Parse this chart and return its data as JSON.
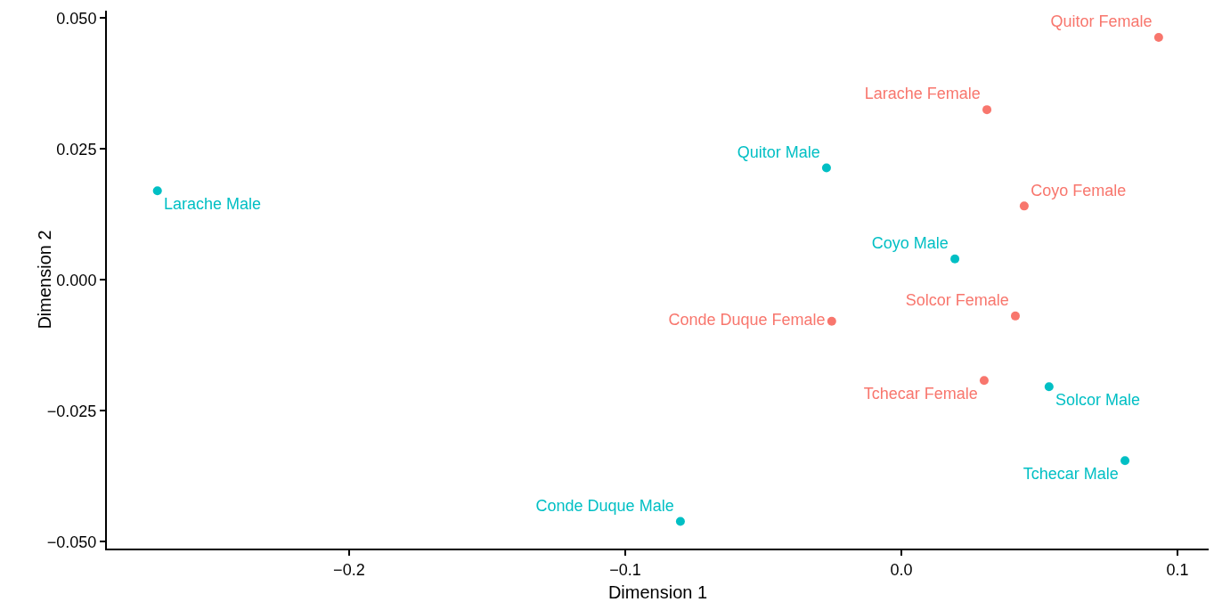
{
  "chart_data": {
    "type": "scatter",
    "xlabel": "Dimension 1",
    "ylabel": "Dimension 2",
    "grid": false,
    "marker": "circle",
    "xlim": [
      -0.2877,
      0.1113
    ],
    "ylim": [
      -0.0513,
      0.0514
    ],
    "xticks": [
      {
        "value": -0.2,
        "label": "−0.2"
      },
      {
        "value": -0.1,
        "label": "−0.1"
      },
      {
        "value": 0,
        "label": "0.0"
      },
      {
        "value": 0.1,
        "label": "0.1"
      }
    ],
    "yticks": [
      {
        "value": -0.05,
        "label": "−0.050"
      },
      {
        "value": -0.025,
        "label": "−0.025"
      },
      {
        "value": 0,
        "label": "0.000"
      },
      {
        "value": 0.025,
        "label": "0.025"
      },
      {
        "value": 0.05,
        "label": "0.050"
      }
    ],
    "series": [
      {
        "color": "#00bfc4",
        "x": [
          -0.2694,
          -0.0271,
          0.0194,
          -0.08,
          0.0535,
          0.081
        ],
        "values": [
          0.017,
          0.0214,
          0.004,
          -0.0461,
          -0.0204,
          -0.0345
        ],
        "value_labels": [
          "Larache Male",
          "Quitor Male",
          "Coyo Male",
          "Conde Duque Male",
          "Solcor Male",
          "Tchecar Male"
        ]
      },
      {
        "color": "#f8766d",
        "x": [
          0.0932,
          0.031,
          0.0445,
          -0.0252,
          0.0413,
          0.03
        ],
        "values": [
          0.0463,
          0.0325,
          0.0141,
          -0.0079,
          -0.0069,
          -0.0192
        ],
        "value_labels": [
          "Quitor Female",
          "Larache Female",
          "Coyo Female",
          "Conde Duque Female",
          "Solcor Female",
          "Tchecar Female"
        ]
      }
    ]
  }
}
